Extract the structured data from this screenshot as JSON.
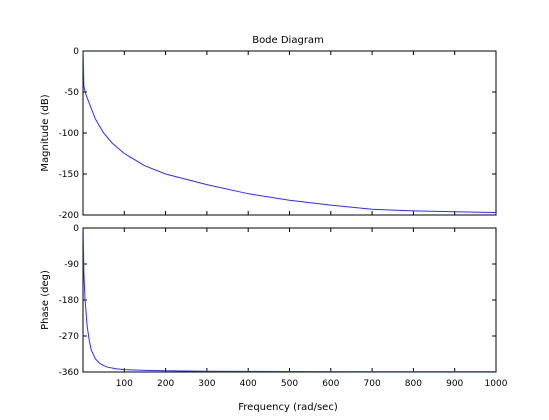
{
  "chart_data": {
    "type": "line",
    "title": "Bode Diagram",
    "xlabel": "Frequency  (rad/sec)",
    "xlim": [
      0,
      1000
    ],
    "xticks": [
      100,
      200,
      300,
      400,
      500,
      600,
      700,
      800,
      900,
      1000
    ],
    "grid": false,
    "line_color": "#2e2ef2",
    "panels": [
      {
        "id": "magnitude",
        "ylabel": "Magnitude (dB)",
        "ylim": [
          -200,
          0
        ],
        "yticks": [
          0,
          -50,
          -100,
          -150,
          -200
        ],
        "x": [
          0.5,
          2,
          5,
          10,
          20,
          30,
          50,
          70,
          100,
          150,
          200,
          300,
          400,
          500,
          600,
          700,
          800,
          900,
          1000
        ],
        "y": [
          -2,
          -42,
          -50,
          -57,
          -70,
          -83,
          -100,
          -112,
          -125,
          -140,
          -150,
          -163,
          -174,
          -182,
          -188,
          -193,
          -195,
          -196,
          -197
        ]
      },
      {
        "id": "phase",
        "ylabel": "Phase (deg)",
        "ylim": [
          -360,
          0
        ],
        "yticks": [
          0,
          -90,
          -180,
          -270,
          -360
        ],
        "x": [
          0.5,
          2,
          5,
          10,
          15,
          20,
          30,
          40,
          50,
          60,
          80,
          100,
          150,
          200,
          300,
          400,
          500,
          700,
          1000
        ],
        "y": [
          -2,
          -110,
          -180,
          -245,
          -280,
          -305,
          -327,
          -338,
          -344,
          -348,
          -352,
          -354,
          -356,
          -357,
          -358,
          -358.5,
          -358.8,
          -359,
          -359
        ]
      }
    ]
  }
}
